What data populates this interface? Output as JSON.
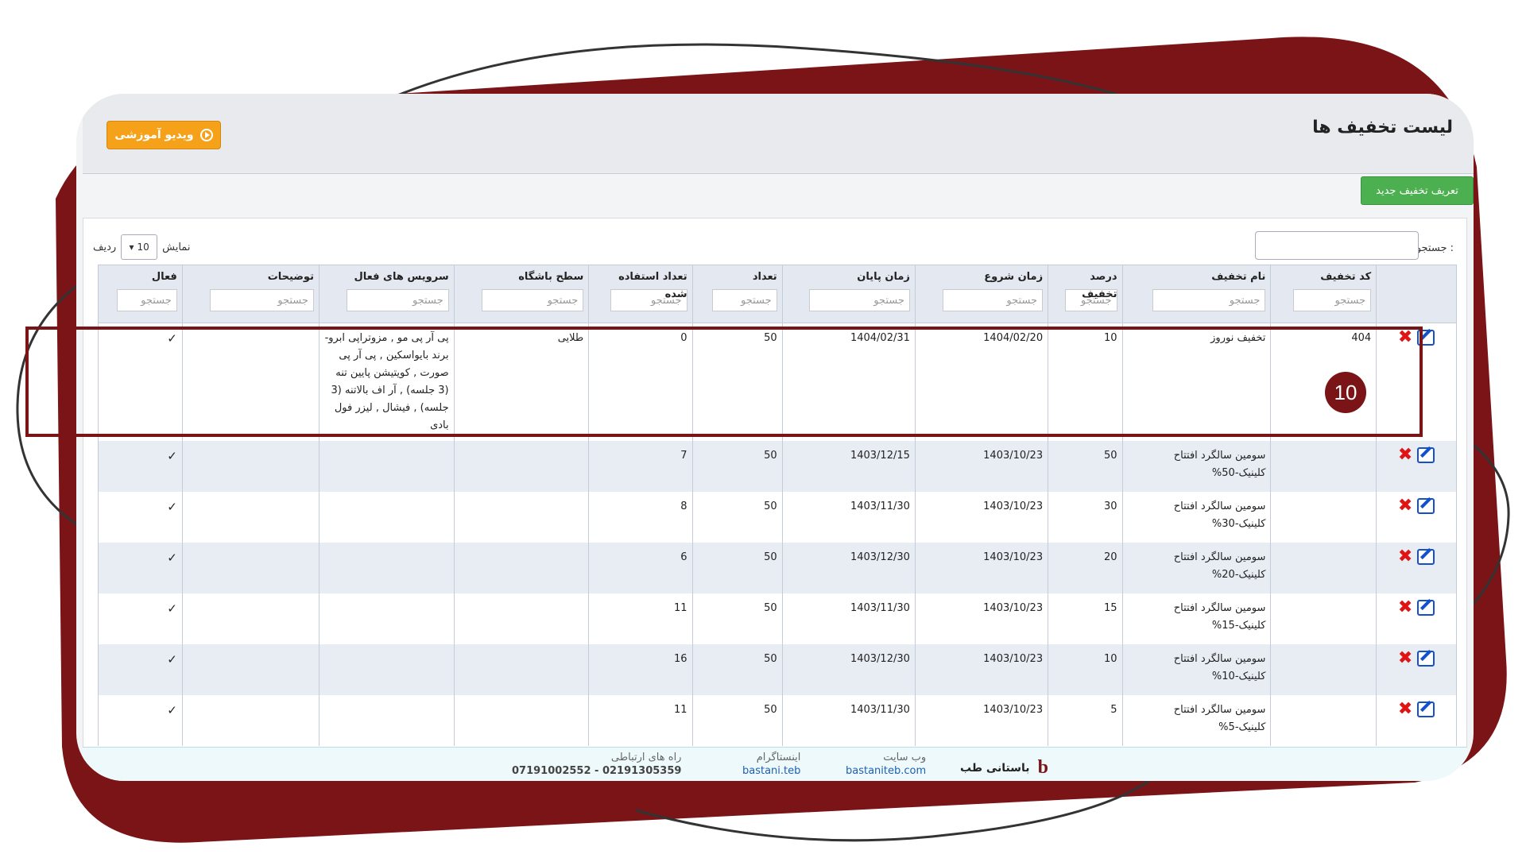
{
  "header": {
    "title": "لیست تخفیف ها",
    "video_label": "ویدیو آموزشی",
    "new_discount_label": "تعریف تخفیف جدید"
  },
  "toolbar": {
    "search_label": "جستجو :",
    "show_label": "نمایش",
    "show_value": "10",
    "rows_label": "ردیف"
  },
  "table": {
    "search_placeholder": "جستجو",
    "columns": [
      "کد تخفیف",
      "نام تخفیف",
      "درصد تخفیف",
      "زمان شروع",
      "زمان پایان",
      "تعداد",
      "تعداد استفاده شده",
      "سطح باشگاه",
      "سرویس های فعال",
      "توضیحات",
      "فعال"
    ],
    "rows": [
      {
        "code": "404",
        "name": "تخفیف نوروز",
        "percent": "10",
        "start": "1404/02/20",
        "end": "1404/02/31",
        "count": "50",
        "used": "0",
        "level": "طلایی",
        "services": "پی آر پی مو , مزوتراپی ابرو- برند بایواسکین , پی آر پی صورت , کویتیشن پایین تنه (3 جلسه) , آر اف بالاتنه (3 جلسه) , فیشال , لیزر فول بادی",
        "desc": "",
        "active": "✓"
      },
      {
        "code": "",
        "name": "سومین سالگرد افتتاح کلینیک-50%",
        "percent": "50",
        "start": "1403/10/23",
        "end": "1403/12/15",
        "count": "50",
        "used": "7",
        "level": "",
        "services": "",
        "desc": "",
        "active": "✓"
      },
      {
        "code": "",
        "name": "سومین سالگرد افتتاح کلینیک-30%",
        "percent": "30",
        "start": "1403/10/23",
        "end": "1403/11/30",
        "count": "50",
        "used": "8",
        "level": "",
        "services": "",
        "desc": "",
        "active": "✓"
      },
      {
        "code": "",
        "name": "سومین سالگرد افتتاح کلینیک-20%",
        "percent": "20",
        "start": "1403/10/23",
        "end": "1403/12/30",
        "count": "50",
        "used": "6",
        "level": "",
        "services": "",
        "desc": "",
        "active": "✓"
      },
      {
        "code": "",
        "name": "سومین سالگرد افتتاح کلینیک-15%",
        "percent": "15",
        "start": "1403/10/23",
        "end": "1403/11/30",
        "count": "50",
        "used": "11",
        "level": "",
        "services": "",
        "desc": "",
        "active": "✓"
      },
      {
        "code": "",
        "name": "سومین سالگرد افتتاح کلینیک-10%",
        "percent": "10",
        "start": "1403/10/23",
        "end": "1403/12/30",
        "count": "50",
        "used": "16",
        "level": "",
        "services": "",
        "desc": "",
        "active": "✓"
      },
      {
        "code": "",
        "name": "سومین سالگرد افتتاح کلینیک-5%",
        "percent": "5",
        "start": "1403/10/23",
        "end": "1403/11/30",
        "count": "50",
        "used": "11",
        "level": "",
        "services": "",
        "desc": "",
        "active": "✓"
      }
    ]
  },
  "badge": {
    "number": "10"
  },
  "footer": {
    "brand": "باستانی طب",
    "website_label": "وب سایت",
    "website": "bastaniteb.com",
    "instagram_label": "اینستاگرام",
    "instagram": "bastani.teb",
    "contact_label": "راه های ارتباطی",
    "phones": "07191002552 - 02191305359"
  },
  "colors": {
    "frame": "#7b1416",
    "accent_orange": "#f5a21a",
    "accent_green": "#4caf50",
    "link_blue": "#1d5fb0"
  }
}
